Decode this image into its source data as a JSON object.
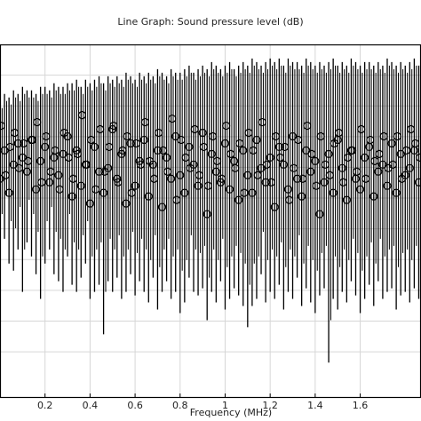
{
  "chart_data": {
    "type": "scatter",
    "title": "Line Graph: Sound pressure level (dB)",
    "xlabel": "Frequency (MHz)",
    "ylabel": "",
    "xlim": [
      0.0,
      1.87
    ],
    "ylim": [
      0,
      100
    ],
    "x_ticks": [
      0.2,
      0.4,
      0.6,
      0.8,
      1,
      1.2,
      1.4,
      1.6
    ],
    "x_tick_labels": [
      "0.2",
      "0.4",
      "0.6",
      "0.8",
      "1",
      "1.2",
      "1.4",
      "1.6"
    ],
    "grid": true,
    "legend": "none",
    "marker": "circle-open",
    "colors": {
      "data": "#000000",
      "grid": "#d6d6d6",
      "frame": "#000000"
    },
    "series": [
      {
        "values_note": "",
        "x": [
          0.0,
          0.02,
          0.04,
          0.06,
          0.08,
          0.1,
          0.12,
          0.14,
          0.16,
          0.18,
          0.2,
          0.22,
          0.24,
          0.26,
          0.28,
          0.3,
          0.32,
          0.34,
          0.36,
          0.38,
          0.4,
          0.42,
          0.44,
          0.46,
          0.48,
          0.5,
          0.52,
          0.54,
          0.56,
          0.58,
          0.6,
          0.62,
          0.64,
          0.66,
          0.68,
          0.7,
          0.72,
          0.74,
          0.76,
          0.78,
          0.8,
          0.82,
          0.84,
          0.86,
          0.88,
          0.9,
          0.92,
          0.94,
          0.96,
          0.98,
          1.0,
          1.02,
          1.04,
          1.06,
          1.08,
          1.1,
          1.12,
          1.14,
          1.16,
          1.18,
          1.2,
          1.22,
          1.24,
          1.26,
          1.28,
          1.3,
          1.32,
          1.34,
          1.36,
          1.38,
          1.4,
          1.42,
          1.44,
          1.46,
          1.48,
          1.5,
          1.52,
          1.54,
          1.56,
          1.58,
          1.6,
          1.62,
          1.64,
          1.66,
          1.68,
          1.7,
          1.72,
          1.74,
          1.76,
          1.78,
          1.8,
          1.82,
          1.84,
          1.86
        ],
        "y_max": [
          84,
          86,
          85,
          87,
          86,
          88,
          87,
          87,
          86,
          88,
          88,
          87,
          89,
          88,
          88,
          89,
          89,
          90,
          88,
          90,
          89,
          90,
          91,
          89,
          91,
          90,
          91,
          90,
          92,
          91,
          90,
          92,
          91,
          92,
          91,
          93,
          92,
          91,
          93,
          92,
          92,
          93,
          94,
          92,
          93,
          94,
          93,
          95,
          94,
          93,
          94,
          95,
          93,
          94,
          95,
          94,
          96,
          95,
          94,
          95,
          96,
          95,
          96,
          94,
          96,
          95,
          95,
          94,
          96,
          95,
          94,
          95,
          94,
          95,
          96,
          94,
          95,
          94,
          96,
          95,
          94,
          95,
          95,
          94,
          95,
          94,
          96,
          95,
          94,
          95,
          94,
          95,
          96,
          94
        ],
        "y_min": [
          40,
          45,
          38,
          36,
          42,
          30,
          44,
          40,
          35,
          28,
          38,
          42,
          35,
          33,
          30,
          40,
          32,
          30,
          34,
          38,
          28,
          30,
          32,
          18,
          33,
          30,
          34,
          28,
          30,
          35,
          29,
          33,
          30,
          27,
          34,
          25,
          30,
          33,
          28,
          30,
          24,
          27,
          34,
          30,
          29,
          31,
          22,
          30,
          27,
          33,
          25,
          28,
          31,
          29,
          26,
          20,
          26,
          28,
          35,
          27,
          30,
          28,
          32,
          25,
          30,
          28,
          34,
          26,
          31,
          27,
          24,
          29,
          31,
          10,
          28,
          25,
          30,
          27,
          33,
          29,
          24,
          28,
          32,
          26,
          33,
          28,
          30,
          31,
          25,
          29,
          30,
          27,
          31,
          28
        ],
        "y_marker": [
          62,
          70,
          58,
          66,
          72,
          68,
          64,
          73,
          59,
          67,
          71,
          61,
          68,
          63,
          69,
          74,
          57,
          70,
          60,
          66,
          55,
          71,
          64,
          58,
          65,
          76,
          62,
          69,
          55,
          72,
          60,
          67,
          73,
          57,
          66,
          70,
          54,
          68,
          62,
          74,
          63,
          58,
          71,
          66,
          60,
          75,
          52,
          69,
          64,
          61,
          72,
          59,
          67,
          56,
          70,
          63,
          58,
          73,
          65,
          61,
          68,
          54,
          71,
          66,
          59,
          74,
          62,
          57,
          70,
          64,
          67,
          52,
          61,
          69,
          58,
          73,
          65,
          56,
          70,
          62,
          59,
          68,
          71,
          57,
          64,
          66,
          60,
          72,
          58,
          69,
          63,
          65,
          70,
          61
        ]
      }
    ]
  }
}
